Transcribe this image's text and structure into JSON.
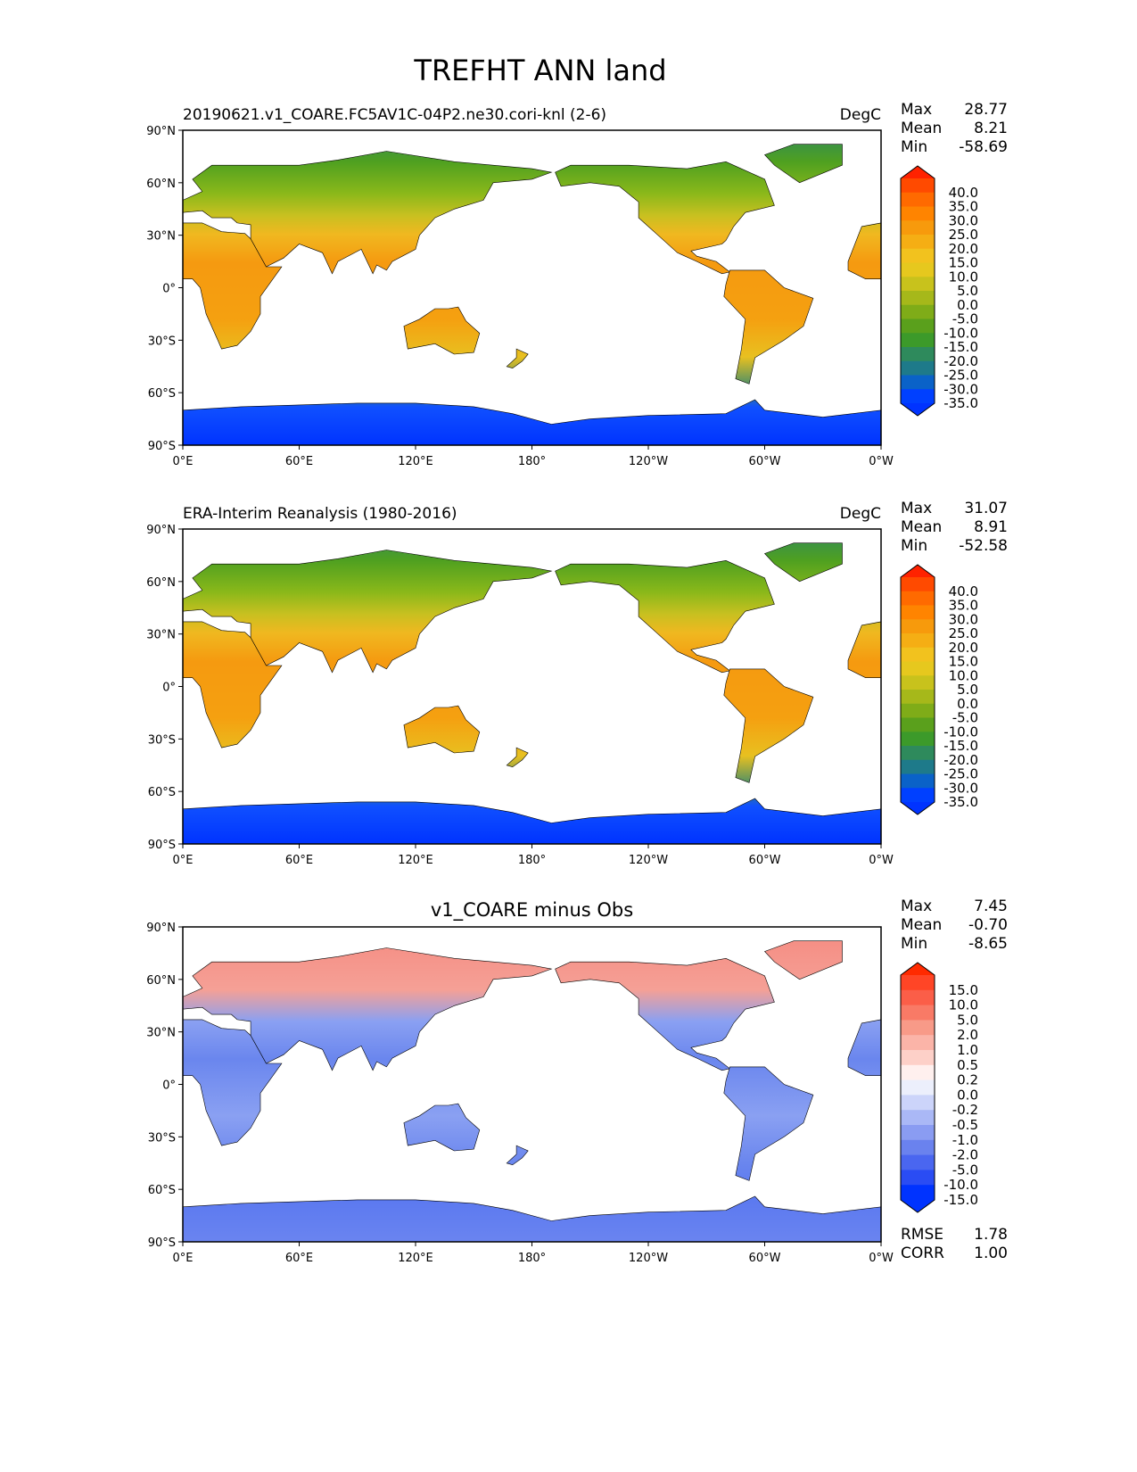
{
  "figure_title": "TREFHT ANN land",
  "lat_ticks": [
    "90°N",
    "60°N",
    "30°N",
    "0°",
    "30°S",
    "60°S",
    "90°S"
  ],
  "lon_ticks": [
    "0°E",
    "60°E",
    "120°E",
    "180°",
    "120°W",
    "60°W",
    "0°W"
  ],
  "panels": [
    {
      "left_title": "20190621.v1_COARE.FC5AV1C-04P2.ne30.cori-knl (2-6)",
      "center_title": "",
      "units": "DegC",
      "stats": [
        {
          "label": "Max",
          "value": "28.77"
        },
        {
          "label": "Mean",
          "value": "8.21"
        },
        {
          "label": "Min",
          "value": "-58.69"
        }
      ],
      "colorbar_labels": [
        "40.0",
        "35.0",
        "30.0",
        "25.0",
        "20.0",
        "15.0",
        "10.0",
        "5.0",
        "0.0",
        "-5.0",
        "-10.0",
        "-15.0",
        "-20.0",
        "-25.0",
        "-30.0",
        "-35.0"
      ],
      "colorbar_colors": [
        "#ff2200",
        "#ff4a00",
        "#ff6a00",
        "#ff8400",
        "#f79a0c",
        "#f5ae14",
        "#f2c21e",
        "#e6c81e",
        "#c8c21c",
        "#a6b81a",
        "#7fac18",
        "#5aa01c",
        "#3c9a2a",
        "#2e8a5c",
        "#1e7a8a",
        "#0a62c8",
        "#0040ff",
        "#0033ff"
      ],
      "extra_stats": []
    },
    {
      "left_title": "ERA-Interim Reanalysis (1980-2016)",
      "center_title": "",
      "units": "DegC",
      "stats": [
        {
          "label": "Max",
          "value": "31.07"
        },
        {
          "label": "Mean",
          "value": "8.91"
        },
        {
          "label": "Min",
          "value": "-52.58"
        }
      ],
      "colorbar_labels": [
        "40.0",
        "35.0",
        "30.0",
        "25.0",
        "20.0",
        "15.0",
        "10.0",
        "5.0",
        "0.0",
        "-5.0",
        "-10.0",
        "-15.0",
        "-20.0",
        "-25.0",
        "-30.0",
        "-35.0"
      ],
      "colorbar_colors": [
        "#ff2200",
        "#ff4a00",
        "#ff6a00",
        "#ff8400",
        "#f79a0c",
        "#f5ae14",
        "#f2c21e",
        "#e6c81e",
        "#c8c21c",
        "#a6b81a",
        "#7fac18",
        "#5aa01c",
        "#3c9a2a",
        "#2e8a5c",
        "#1e7a8a",
        "#0a62c8",
        "#0040ff",
        "#0033ff"
      ],
      "extra_stats": []
    },
    {
      "left_title": "",
      "center_title": "v1_COARE minus Obs",
      "units": "",
      "stats": [
        {
          "label": "Max",
          "value": "7.45"
        },
        {
          "label": "Mean",
          "value": "-0.70"
        },
        {
          "label": "Min",
          "value": "-8.65"
        }
      ],
      "colorbar_labels": [
        "15.0",
        "10.0",
        "5.0",
        "2.0",
        "1.0",
        "0.5",
        "0.2",
        "0.0",
        "-0.2",
        "-0.5",
        "-1.0",
        "-2.0",
        "-5.0",
        "-10.0",
        "-15.0"
      ],
      "colorbar_colors": [
        "#ff2a00",
        "#ff4526",
        "#fb5e48",
        "#f97a66",
        "#f89a88",
        "#fbb4a8",
        "#fdd0c8",
        "#fff0ee",
        "#eceffc",
        "#ccd4fa",
        "#aab8f6",
        "#8a9cf2",
        "#6a82ee",
        "#4a66f0",
        "#2a4cf4",
        "#0033ff",
        "#0033ff"
      ],
      "extra_stats": [
        {
          "label": "RMSE",
          "value": "1.78"
        },
        {
          "label": "CORR",
          "value": "1.00"
        }
      ]
    }
  ]
}
